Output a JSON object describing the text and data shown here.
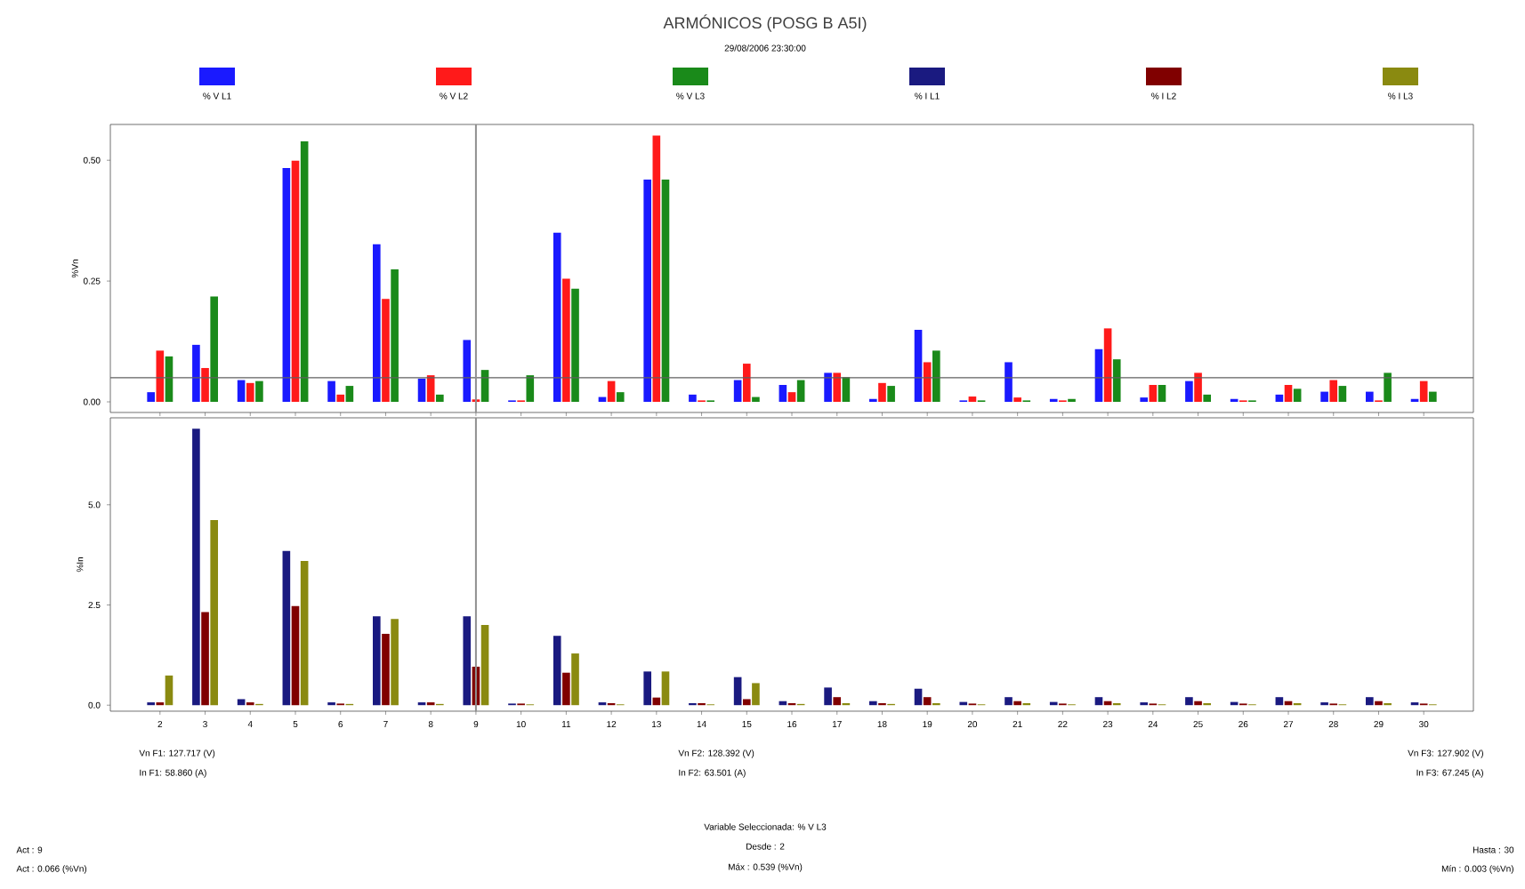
{
  "chart_data": [
    {
      "type": "bar",
      "title": "ARMÓNICOS (POSG B A5I)",
      "subtitle": "29/08/2006 23:30:00",
      "ylabel": "%Vn",
      "x": [
        2,
        3,
        4,
        5,
        6,
        7,
        8,
        9,
        10,
        11,
        12,
        13,
        14,
        15,
        16,
        17,
        18,
        19,
        20,
        21,
        22,
        23,
        24,
        25,
        26,
        27,
        28,
        29,
        30
      ],
      "xlim": [
        0.9,
        31.1
      ],
      "xticks": [
        2,
        3,
        4,
        5,
        6,
        7,
        8,
        9,
        10,
        11,
        12,
        13,
        14,
        15,
        16,
        17,
        18,
        19,
        20,
        21,
        22,
        23,
        24,
        25,
        26,
        27,
        28,
        29,
        30
      ],
      "ylim": [
        -0.022,
        0.574
      ],
      "yticks": [
        {
          "value": 0,
          "label": "0.00"
        },
        {
          "value": 0.25,
          "label": "0.25"
        },
        {
          "value": 0.5,
          "label": "0.50"
        }
      ],
      "tick_labels": "y",
      "legend": "top",
      "ref_lines": [
        {
          "axis": "y",
          "value": 0.05,
          "color": "#606060"
        },
        {
          "axis": "x",
          "value": 9,
          "color": "#909090"
        }
      ],
      "series": [
        {
          "name": "% V L1",
          "color": "#1a1aff",
          "values": [
            0.02,
            0.118,
            0.045,
            0.484,
            0.043,
            0.326,
            0.048,
            0.128,
            0.003,
            0.35,
            0.01,
            0.46,
            0.015,
            0.045,
            0.035,
            0.06,
            0.006,
            0.149,
            0.003,
            0.082,
            0.006,
            0.109,
            0.009,
            0.043,
            0.006,
            0.015,
            0.021,
            0.021,
            0.006
          ]
        },
        {
          "name": "% V L2",
          "color": "#ff1a1a",
          "values": [
            0.106,
            0.07,
            0.039,
            0.499,
            0.015,
            0.213,
            0.055,
            0.005,
            0.003,
            0.255,
            0.043,
            0.551,
            0.003,
            0.079,
            0.02,
            0.06,
            0.039,
            0.082,
            0.011,
            0.009,
            0.003,
            0.152,
            0.035,
            0.06,
            0.003,
            0.035,
            0.045,
            0.003,
            0.043
          ]
        },
        {
          "name": "% V L3",
          "color": "#1a8a1a",
          "values": [
            0.094,
            0.218,
            0.043,
            0.539,
            0.033,
            0.274,
            0.015,
            0.066,
            0.055,
            0.234,
            0.02,
            0.46,
            0.003,
            0.01,
            0.045,
            0.051,
            0.033,
            0.106,
            0.003,
            0.003,
            0.006,
            0.088,
            0.035,
            0.015,
            0.003,
            0.027,
            0.033,
            0.06,
            0.021
          ]
        }
      ]
    },
    {
      "type": "bar",
      "ylabel": "%In",
      "x": [
        2,
        3,
        4,
        5,
        6,
        7,
        8,
        9,
        10,
        11,
        12,
        13,
        14,
        15,
        16,
        17,
        18,
        19,
        20,
        21,
        22,
        23,
        24,
        25,
        26,
        27,
        28,
        29,
        30
      ],
      "xlim": [
        0.9,
        31.1
      ],
      "xticks": [
        2,
        3,
        4,
        5,
        6,
        7,
        8,
        9,
        10,
        11,
        12,
        13,
        14,
        15,
        16,
        17,
        18,
        19,
        20,
        21,
        22,
        23,
        24,
        25,
        26,
        27,
        28,
        29,
        30
      ],
      "ylim": [
        -0.15,
        7.17
      ],
      "yticks": [
        {
          "value": 0,
          "label": "0.0"
        },
        {
          "value": 2.5,
          "label": "2.5"
        },
        {
          "value": 5,
          "label": "5.0"
        }
      ],
      "legend": "top",
      "ref_lines": [
        {
          "axis": "x",
          "value": 9,
          "color": "#909090"
        }
      ],
      "series": [
        {
          "name": "% I L1",
          "color": "#1a1a80",
          "values": [
            0.07,
            6.9,
            0.15,
            3.85,
            0.07,
            2.22,
            0.07,
            2.22,
            0.04,
            1.73,
            0.07,
            0.84,
            0.05,
            0.7,
            0.1,
            0.44,
            0.1,
            0.41,
            0.08,
            0.2,
            0.08,
            0.2,
            0.07,
            0.2,
            0.08,
            0.2,
            0.07,
            0.2,
            0.07
          ]
        },
        {
          "name": "% I L2",
          "color": "#800000",
          "values": [
            0.07,
            2.32,
            0.07,
            2.47,
            0.04,
            1.78,
            0.07,
            0.96,
            0.04,
            0.81,
            0.05,
            0.19,
            0.05,
            0.15,
            0.05,
            0.2,
            0.05,
            0.2,
            0.04,
            0.1,
            0.04,
            0.1,
            0.04,
            0.1,
            0.04,
            0.1,
            0.04,
            0.1,
            0.04
          ]
        },
        {
          "name": "% I L3",
          "color": "#8a8a10",
          "values": [
            0.74,
            4.62,
            0.03,
            3.6,
            0.03,
            2.15,
            0.03,
            2.0,
            0.02,
            1.29,
            0.02,
            0.84,
            0.02,
            0.55,
            0.03,
            0.05,
            0.03,
            0.05,
            0.02,
            0.05,
            0.02,
            0.05,
            0.02,
            0.05,
            0.02,
            0.05,
            0.02,
            0.05,
            0.02
          ]
        }
      ],
      "annotations": [
        "Vn F1: 127.717 (V)",
        "In F1: 58.860 (A)",
        "Vn F2: 128.392 (V)",
        "In F2: 63.501 (A)",
        "Vn F3: 127.902 (V)",
        "In F3: 67.245 (A)",
        "Variable Seleccionada: % V L3",
        "Desde : 2",
        "Máx : 0.539 (%Vn)",
        "Act : 9",
        "Act : 0.066 (%Vn)",
        "Hasta : 30",
        "Mín : 0.003 (%Vn)"
      ]
    }
  ]
}
